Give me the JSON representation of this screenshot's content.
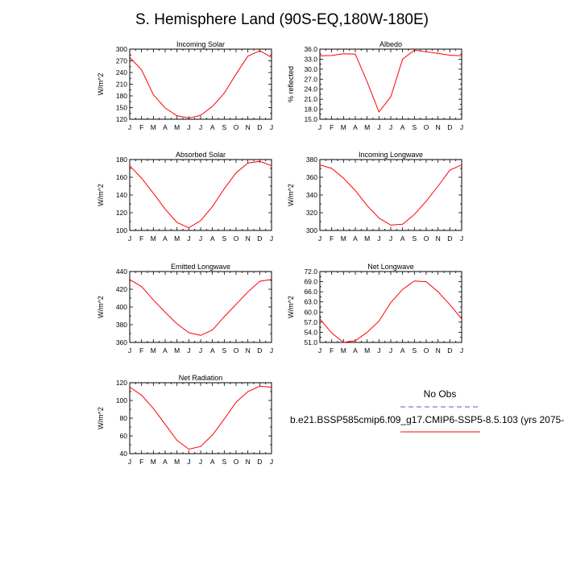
{
  "title": "S. Hemisphere Land (90S-EQ,180W-180E)",
  "legend": {
    "obs_label": "No Obs",
    "obs_color": "#5a5aff",
    "model_label": "b.e21.BSSP585cmip6.f09_g17.CMIP6-SSP5-8.5.103 (yrs 2075-",
    "model_color": "#ff0000"
  },
  "chart_data": [
    {
      "type": "line",
      "title": "Incoming Solar",
      "ylabel": "W/m^2",
      "categories": [
        "J",
        "F",
        "M",
        "A",
        "M",
        "J",
        "J",
        "A",
        "S",
        "O",
        "N",
        "D",
        "J"
      ],
      "values": [
        279,
        247,
        183,
        149,
        129,
        123,
        130,
        153,
        187,
        236,
        282,
        296,
        279
      ],
      "ylim": [
        120,
        300
      ],
      "yticks": [
        120,
        135,
        150,
        165,
        180,
        195,
        210,
        225,
        240,
        255,
        270,
        285,
        300
      ],
      "ytick_labels": [
        "120",
        "",
        "150",
        "",
        "180",
        "",
        "210",
        "",
        "240",
        "",
        "270",
        "",
        "300"
      ]
    },
    {
      "type": "line",
      "title": "Albedo",
      "ylabel": "% reflected",
      "categories": [
        "J",
        "F",
        "M",
        "A",
        "M",
        "J",
        "J",
        "A",
        "S",
        "O",
        "N",
        "D",
        "J"
      ],
      "values": [
        34.0,
        34.1,
        34.6,
        34.5,
        26.2,
        17.2,
        21.7,
        33.0,
        35.7,
        35.2,
        34.7,
        34.2,
        34.0
      ],
      "ylim": [
        15.0,
        36.0
      ],
      "yticks": [
        15,
        16.5,
        18,
        19.5,
        21,
        22.5,
        24,
        25.5,
        27,
        28.5,
        30,
        31.5,
        33,
        34.5,
        36
      ],
      "ytick_labels": [
        "15.0",
        "",
        "18.0",
        "",
        "21.0",
        "",
        "24.0",
        "",
        "27.0",
        "",
        "30.0",
        "",
        "33.0",
        "",
        "36.0"
      ]
    },
    {
      "type": "line",
      "title": "Absorbed Solar",
      "ylabel": "W/m^2",
      "categories": [
        "J",
        "F",
        "M",
        "A",
        "M",
        "J",
        "J",
        "A",
        "S",
        "O",
        "N",
        "D",
        "J"
      ],
      "values": [
        173,
        159,
        142,
        124,
        109,
        103,
        111,
        127,
        147,
        165,
        176,
        178,
        173
      ],
      "ylim": [
        100,
        180
      ],
      "yticks": [
        100,
        110,
        120,
        130,
        140,
        150,
        160,
        170,
        180
      ],
      "ytick_labels": [
        "100",
        "",
        "120",
        "",
        "140",
        "",
        "160",
        "",
        "180"
      ]
    },
    {
      "type": "line",
      "title": "Incoming Longwave",
      "ylabel": "W/m^2",
      "categories": [
        "J",
        "F",
        "M",
        "A",
        "M",
        "J",
        "J",
        "A",
        "S",
        "O",
        "N",
        "D",
        "J"
      ],
      "values": [
        374,
        370,
        359,
        345,
        328,
        314,
        306,
        307,
        318,
        333,
        350,
        368,
        374
      ],
      "ylim": [
        300,
        380
      ],
      "yticks": [
        300,
        310,
        320,
        330,
        340,
        350,
        360,
        370,
        380
      ],
      "ytick_labels": [
        "300",
        "",
        "320",
        "",
        "340",
        "",
        "360",
        "",
        "380"
      ]
    },
    {
      "type": "line",
      "title": "Emitted Longwave",
      "ylabel": "W/m^2",
      "categories": [
        "J",
        "F",
        "M",
        "A",
        "M",
        "J",
        "J",
        "A",
        "S",
        "O",
        "N",
        "D",
        "J"
      ],
      "values": [
        431,
        423,
        408,
        394,
        381,
        371,
        368,
        374,
        389,
        403,
        417,
        429,
        431
      ],
      "ylim": [
        360,
        440
      ],
      "yticks": [
        360,
        370,
        380,
        390,
        400,
        410,
        420,
        430,
        440
      ],
      "ytick_labels": [
        "360",
        "",
        "380",
        "",
        "400",
        "",
        "420",
        "",
        "440"
      ]
    },
    {
      "type": "line",
      "title": "Net Longwave",
      "ylabel": "W/m^2",
      "categories": [
        "J",
        "F",
        "M",
        "A",
        "M",
        "J",
        "J",
        "A",
        "S",
        "O",
        "N",
        "D",
        "J"
      ],
      "values": [
        58.0,
        53.8,
        51.0,
        51.5,
        54.0,
        57.3,
        62.8,
        66.7,
        69.2,
        69.0,
        66.0,
        62.2,
        58.0
      ],
      "ylim": [
        51.0,
        72.0
      ],
      "yticks": [
        51,
        52.5,
        54,
        55.5,
        57,
        58.5,
        60,
        61.5,
        63,
        64.5,
        66,
        67.5,
        69,
        70.5,
        72
      ],
      "ytick_labels": [
        "51.0",
        "",
        "54.0",
        "",
        "57.0",
        "",
        "60.0",
        "",
        "63.0",
        "",
        "66.0",
        "",
        "69.0",
        "",
        "72.0"
      ]
    },
    {
      "type": "line",
      "title": "Net Radiation",
      "ylabel": "W/m^2",
      "categories": [
        "J",
        "F",
        "M",
        "A",
        "M",
        "J",
        "J",
        "A",
        "S",
        "O",
        "N",
        "D",
        "J"
      ],
      "values": [
        115,
        106,
        91,
        73,
        55,
        45,
        48,
        61,
        79,
        98,
        110,
        116,
        115
      ],
      "ylim": [
        40,
        120
      ],
      "yticks": [
        40,
        50,
        60,
        70,
        80,
        90,
        100,
        110,
        120
      ],
      "ytick_labels": [
        "40",
        "",
        "60",
        "",
        "80",
        "",
        "100",
        "",
        "120"
      ]
    }
  ]
}
